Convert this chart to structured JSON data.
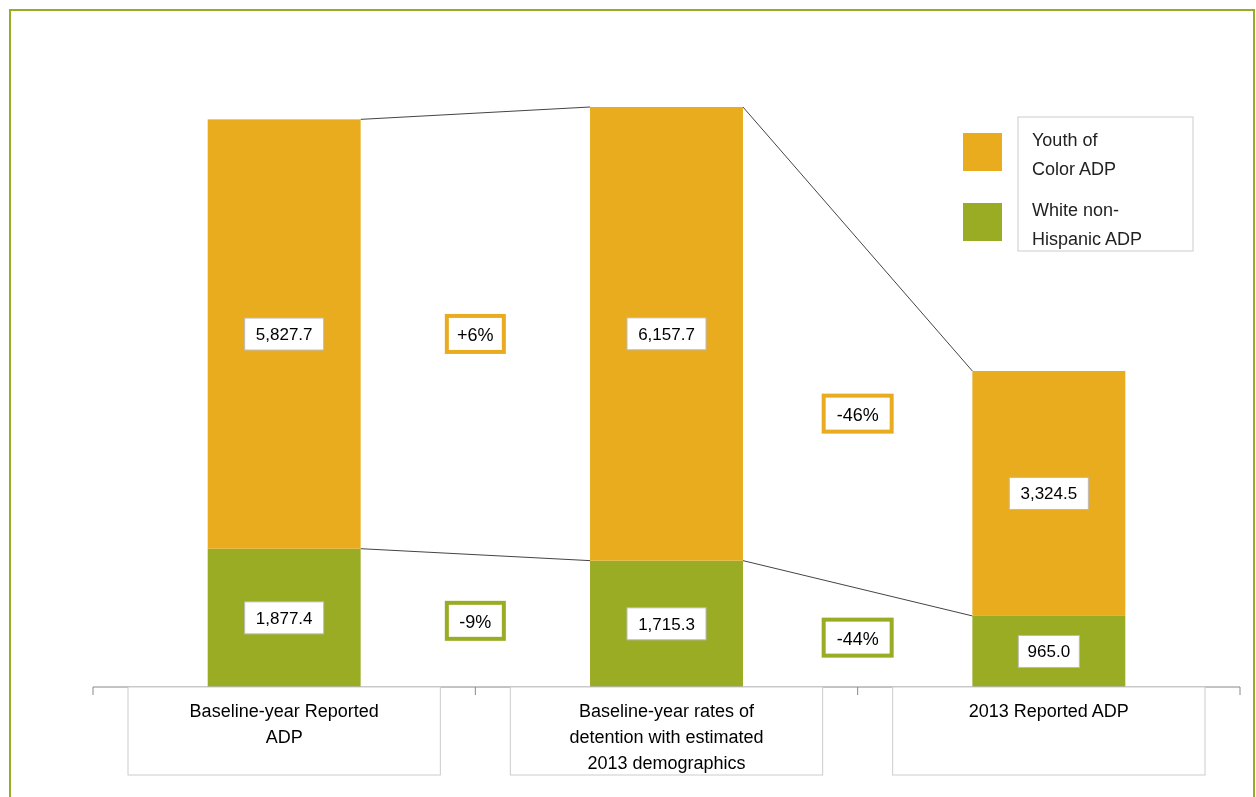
{
  "chart_data": {
    "type": "bar",
    "stacked": true,
    "legend": "top right",
    "categories": [
      "Baseline-year Reported ADP",
      "Baseline-year rates of detention with estimated 2013 demographics",
      "2013 Reported ADP"
    ],
    "series": [
      {
        "name": "White non-Hispanic ADP",
        "color": "#9aab24",
        "values": [
          1877.4,
          1715.3,
          965.0
        ],
        "value_labels": [
          "1,877.4",
          "1,715.3",
          "965.0"
        ]
      },
      {
        "name": "Youth of Color ADP",
        "color": "#e8ac1e",
        "values": [
          5827.7,
          6157.7,
          3324.5
        ],
        "value_labels": [
          "5,827.7",
          "6,157.7",
          "3,324.5"
        ]
      }
    ],
    "annotations": [
      "+6%",
      "-9%",
      "-46%",
      "-44%"
    ]
  }
}
